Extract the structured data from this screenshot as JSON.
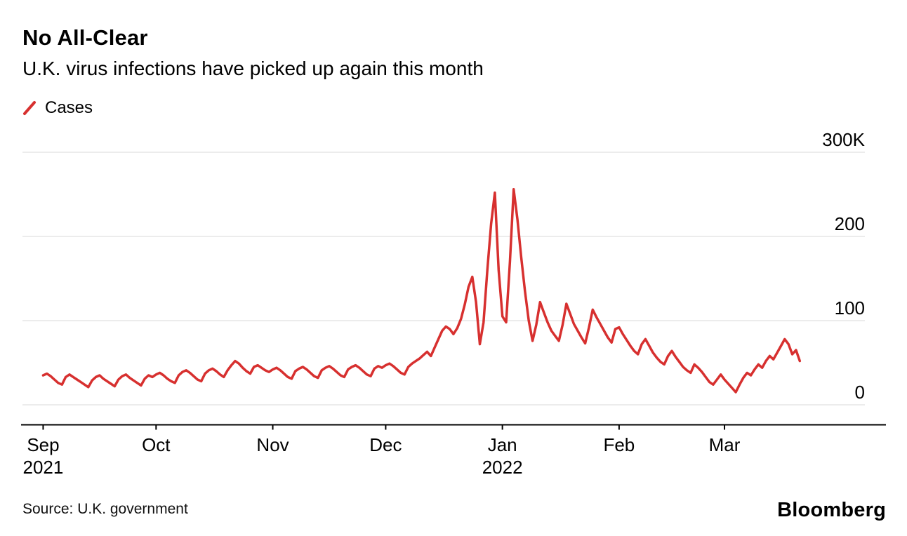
{
  "header": {
    "title": "No All-Clear",
    "subtitle": "U.K. virus infections have picked up again this month"
  },
  "legend": {
    "label": "Cases",
    "color": "#d7302f"
  },
  "chart_data": {
    "type": "line",
    "title": "No All-Clear",
    "subtitle": "U.K. virus infections have picked up again this month",
    "unit": "thousands of daily cases",
    "ylim": [
      0,
      300
    ],
    "grid": "horizontal",
    "legend_position": "top-left",
    "x_range": [
      "Sep 2021",
      "Mar 2022"
    ],
    "series": [
      {
        "name": "Cases",
        "color": "#d7302f",
        "start_date": "2021-09-01",
        "frequency": "daily",
        "values": [
          35,
          37,
          34,
          30,
          26,
          24,
          33,
          36,
          33,
          30,
          27,
          24,
          21,
          29,
          33,
          35,
          31,
          28,
          25,
          22,
          30,
          34,
          36,
          32,
          29,
          26,
          23,
          31,
          35,
          33,
          36,
          38,
          35,
          31,
          28,
          26,
          35,
          39,
          41,
          38,
          34,
          30,
          28,
          37,
          41,
          43,
          40,
          36,
          33,
          41,
          47,
          52,
          49,
          44,
          40,
          37,
          45,
          47,
          44,
          41,
          39,
          42,
          44,
          41,
          37,
          33,
          31,
          40,
          43,
          45,
          42,
          38,
          34,
          32,
          41,
          44,
          46,
          43,
          39,
          35,
          33,
          42,
          45,
          47,
          44,
          40,
          36,
          34,
          43,
          46,
          44,
          47,
          49,
          46,
          42,
          38,
          36,
          45,
          49,
          52,
          55,
          59,
          63,
          58,
          68,
          78,
          88,
          93,
          90,
          84,
          91,
          102,
          119,
          140,
          152,
          122,
          72,
          98,
          160,
          215,
          252,
          160,
          105,
          98,
          170,
          256,
          220,
          175,
          135,
          100,
          76,
          95,
          122,
          110,
          98,
          88,
          82,
          76,
          95,
          120,
          108,
          96,
          88,
          80,
          73,
          92,
          113,
          104,
          96,
          88,
          80,
          74,
          90,
          92,
          84,
          77,
          70,
          64,
          60,
          72,
          78,
          70,
          62,
          56,
          51,
          48,
          58,
          64,
          57,
          51,
          45,
          41,
          38,
          48,
          44,
          39,
          33,
          27,
          24,
          30,
          36,
          30,
          25,
          20,
          15,
          24,
          32,
          38,
          35,
          42,
          48,
          44,
          52,
          58,
          54,
          62,
          70,
          78,
          72,
          60,
          65,
          52
        ]
      }
    ],
    "x_ticks": [
      {
        "label": "Sep",
        "sublabel": "2021",
        "day": 0
      },
      {
        "label": "Oct",
        "day": 30
      },
      {
        "label": "Nov",
        "day": 61
      },
      {
        "label": "Dec",
        "day": 91
      },
      {
        "label": "Jan",
        "sublabel": "2022",
        "day": 122
      },
      {
        "label": "Feb",
        "day": 153
      },
      {
        "label": "Mar",
        "day": 181
      }
    ],
    "y_ticks": [
      {
        "label": "0",
        "value": 0
      },
      {
        "label": "100",
        "value": 100
      },
      {
        "label": "200",
        "value": 200
      },
      {
        "label": "300K",
        "value": 300
      }
    ]
  },
  "source": {
    "label": "Source: U.K. government"
  },
  "brand": {
    "label": "Bloomberg"
  }
}
